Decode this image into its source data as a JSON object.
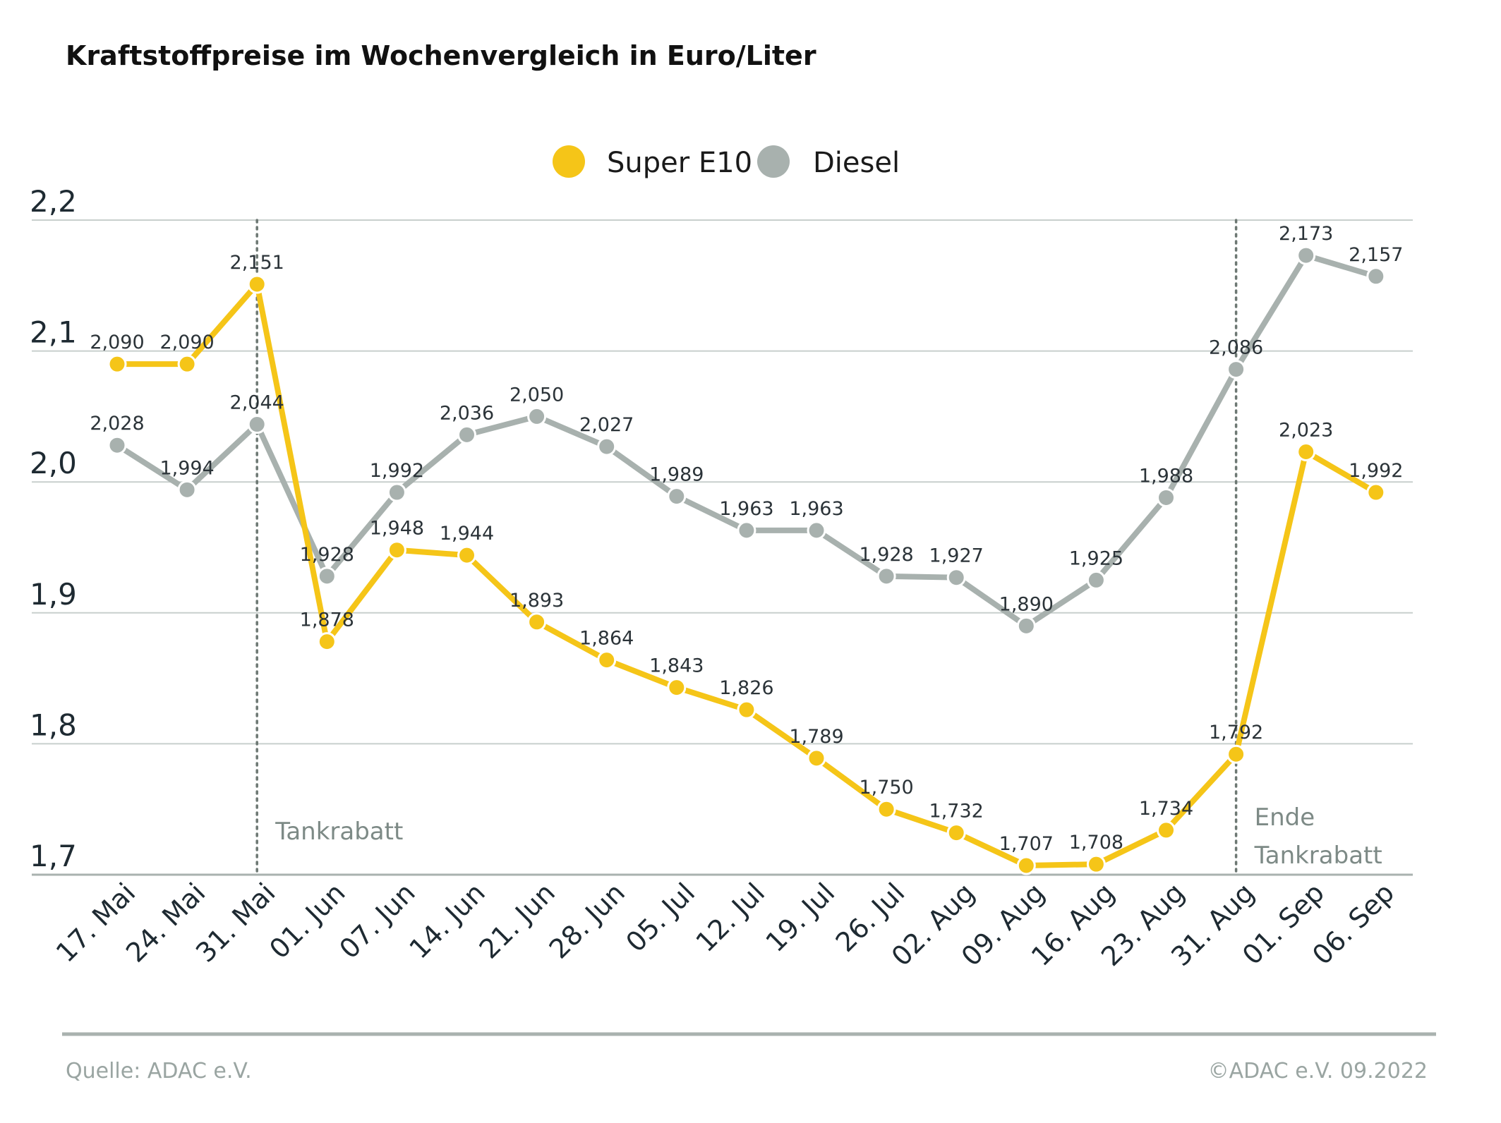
{
  "chart_data": {
    "type": "line",
    "title": "Kraftstoffpreise im Wochenvergleich in Euro/Liter",
    "categories": [
      "17. Mai",
      "24. Mai",
      "31. Mai",
      "01. Jun",
      "07. Jun",
      "14. Jun",
      "21. Jun",
      "28. Jun",
      "05. Jul",
      "12. Jul",
      "19. Jul",
      "26. Jul",
      "02. Aug",
      "09. Aug",
      "16. Aug",
      "23. Aug",
      "31. Aug",
      "01. Sep",
      "06. Sep"
    ],
    "series": [
      {
        "name": "Super E10",
        "color": "#f5c518",
        "values": [
          2.09,
          2.09,
          2.151,
          1.878,
          1.948,
          1.944,
          1.893,
          1.864,
          1.843,
          1.826,
          1.789,
          1.75,
          1.732,
          1.707,
          1.708,
          1.734,
          1.792,
          2.023,
          1.992
        ],
        "labels": [
          "2,090",
          "2,090",
          "2,151",
          "1,878",
          "1,948",
          "1,944",
          "1,893",
          "1,864",
          "1,843",
          "1,826",
          "1,789",
          "1,750",
          "1,732",
          "1,707",
          "1,708",
          "1,734",
          "1,792",
          "2,023",
          "1,992"
        ]
      },
      {
        "name": "Diesel",
        "color": "#a8b1ae",
        "values": [
          2.028,
          1.994,
          2.044,
          1.928,
          1.992,
          2.036,
          2.05,
          2.027,
          1.989,
          1.963,
          1.963,
          1.928,
          1.927,
          1.89,
          1.925,
          1.988,
          2.086,
          2.173,
          2.157
        ],
        "labels": [
          "2,028",
          "1,994",
          "2,044",
          "1,928",
          "1,992",
          "2,036",
          "2,050",
          "2,027",
          "1,989",
          "1,963",
          "1,963",
          "1,928",
          "1,927",
          "1,890",
          "1,925",
          "1,988",
          "2,086",
          "2,173",
          "2,157"
        ]
      }
    ],
    "ylim": [
      1.7,
      2.2
    ],
    "yticks": [
      {
        "value": 2.2,
        "label": "2,2"
      },
      {
        "value": 2.1,
        "label": "2,1"
      },
      {
        "value": 2.0,
        "label": "2,0"
      },
      {
        "value": 1.9,
        "label": "1,9"
      },
      {
        "value": 1.8,
        "label": "1,8"
      },
      {
        "value": 1.7,
        "label": "1,7"
      }
    ],
    "grid": true,
    "legend": "top-center",
    "annotations": [
      {
        "category": "31. Mai",
        "lines": [
          "Tankrabatt"
        ]
      },
      {
        "category": "31. Aug",
        "lines": [
          "Ende",
          "Tankrabatt"
        ]
      }
    ]
  },
  "footer": {
    "source": "Quelle: ADAC e.V.",
    "copyright": "©ADAC e.V.  09.2022"
  },
  "colors": {
    "grid": "#c8cfcd",
    "baseline": "#a9b2af",
    "annotation_line": "#6d7873"
  }
}
